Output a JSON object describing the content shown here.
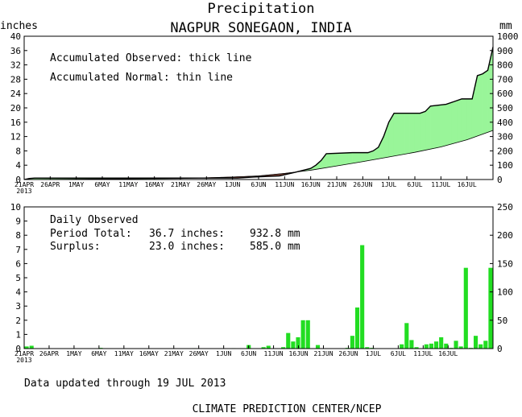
{
  "header": {
    "title": "Precipitation",
    "subtitle": "NAGPUR SONEGAON, INDIA",
    "left_unit": "inches",
    "right_unit": "mm"
  },
  "footer": {
    "updated": "Data updated through 19 JUL 2013",
    "credit": "CLIMATE PREDICTION CENTER/NCEP"
  },
  "colors": {
    "fill": "#99f599",
    "deficit": "#8c4a3c",
    "bar": "#22dd22",
    "line": "#000000"
  },
  "chart_data": [
    {
      "type": "area",
      "legend": [
        "Accumulated Observed: thick line",
        "Accumulated Normal: thin line"
      ],
      "x_tick_labels": [
        "21APR",
        "26APR",
        "1MAY",
        "6MAY",
        "11MAY",
        "16MAY",
        "21MAY",
        "26MAY",
        "1JUN",
        "6JUN",
        "11JUN",
        "16JUN",
        "21JUN",
        "26JUN",
        "1JUL",
        "6JUL",
        "11JUL",
        "16JUL"
      ],
      "x_year_label": "2013",
      "ylim_left": [
        0,
        40
      ],
      "y_ticks_left": [
        0,
        4,
        8,
        12,
        16,
        20,
        24,
        28,
        32,
        36,
        40
      ],
      "ylim_right": [
        0,
        1000
      ],
      "y_ticks_right": [
        0,
        100,
        200,
        300,
        400,
        500,
        600,
        700,
        800,
        900,
        1000
      ],
      "x_days": 90,
      "series": [
        {
          "name": "Accumulated Observed",
          "points": [
            [
              0,
              0
            ],
            [
              1,
              0.3
            ],
            [
              2,
              0.4
            ],
            [
              30,
              0.4
            ],
            [
              41,
              0.4
            ],
            [
              44,
              0.7
            ],
            [
              49,
              1.0
            ],
            [
              52,
              2.0
            ],
            [
              55,
              3.1
            ],
            [
              56,
              4.0
            ],
            [
              57,
              5.3
            ],
            [
              58,
              7.2
            ],
            [
              63,
              7.5
            ],
            [
              66,
              7.5
            ],
            [
              67,
              8.0
            ],
            [
              68,
              9.0
            ],
            [
              69,
              12.0
            ],
            [
              70,
              16.0
            ],
            [
              71,
              18.5
            ],
            [
              76,
              18.5
            ],
            [
              77,
              19.0
            ],
            [
              78,
              20.5
            ],
            [
              81,
              21.0
            ],
            [
              83,
              22.0
            ],
            [
              84,
              22.5
            ],
            [
              86,
              22.5
            ],
            [
              87,
              29.0
            ],
            [
              88,
              29.5
            ],
            [
              89,
              30.5
            ],
            [
              90,
              37.0
            ]
          ]
        },
        {
          "name": "Accumulated Normal",
          "points": [
            [
              0,
              0
            ],
            [
              10,
              0.1
            ],
            [
              20,
              0.2
            ],
            [
              30,
              0.3
            ],
            [
              40,
              0.7
            ],
            [
              45,
              1.0
            ],
            [
              50,
              1.7
            ],
            [
              55,
              2.6
            ],
            [
              60,
              3.8
            ],
            [
              65,
              5.0
            ],
            [
              70,
              6.3
            ],
            [
              75,
              7.6
            ],
            [
              80,
              9.1
            ],
            [
              85,
              11.1
            ],
            [
              90,
              13.7
            ]
          ]
        }
      ]
    },
    {
      "type": "bar",
      "title": "Daily Observed",
      "stats": {
        "period_total_label": "Period Total:",
        "period_total_in": "36.7 inches:",
        "period_total_mm": "932.8 mm",
        "surplus_label": "Surplus:",
        "surplus_in": "23.0 inches:",
        "surplus_mm": "585.0 mm"
      },
      "x_tick_labels": [
        "21APR",
        "26APR",
        "1MAY",
        "6MAY",
        "11MAY",
        "16MAY",
        "21MAY",
        "26MAY",
        "1JUN",
        "6JUN",
        "11JUN",
        "16JUN",
        "21JUN",
        "26JUN",
        "1JUL",
        "6JUL",
        "11JUL",
        "16JUL"
      ],
      "x_year_label": "2013",
      "ylim_left": [
        0,
        10
      ],
      "y_ticks_left": [
        0,
        1,
        2,
        3,
        4,
        5,
        6,
        7,
        8,
        9,
        10
      ],
      "ylim_right": [
        0,
        250
      ],
      "y_ticks_right": [
        0,
        50,
        100,
        150,
        200,
        250
      ],
      "bars": [
        {
          "day": 0,
          "value": 0.15
        },
        {
          "day": 1,
          "value": 0.2
        },
        {
          "day": 2,
          "value": 0.02
        },
        {
          "day": 15,
          "value": 0.05
        },
        {
          "day": 25,
          "value": 0.02
        },
        {
          "day": 32,
          "value": 0.02
        },
        {
          "day": 34,
          "value": 0.03
        },
        {
          "day": 36,
          "value": 0.02
        },
        {
          "day": 42,
          "value": 0.03
        },
        {
          "day": 45,
          "value": 0.25
        },
        {
          "day": 48,
          "value": 0.1
        },
        {
          "day": 49,
          "value": 0.2
        },
        {
          "day": 52,
          "value": 0.1
        },
        {
          "day": 53,
          "value": 1.1
        },
        {
          "day": 54,
          "value": 0.5
        },
        {
          "day": 55,
          "value": 0.8
        },
        {
          "day": 56,
          "value": 2.0
        },
        {
          "day": 57,
          "value": 2.0
        },
        {
          "day": 59,
          "value": 0.25
        },
        {
          "day": 65,
          "value": 0.05
        },
        {
          "day": 66,
          "value": 0.9
        },
        {
          "day": 67,
          "value": 2.9
        },
        {
          "day": 68,
          "value": 7.3
        },
        {
          "day": 69,
          "value": 0.1
        },
        {
          "day": 70,
          "value": 0.05
        },
        {
          "day": 76,
          "value": 0.3
        },
        {
          "day": 77,
          "value": 1.8
        },
        {
          "day": 78,
          "value": 0.6
        },
        {
          "day": 79,
          "value": 0.1
        },
        {
          "day": 81,
          "value": 0.3
        },
        {
          "day": 82,
          "value": 0.35
        },
        {
          "day": 83,
          "value": 0.5
        },
        {
          "day": 84,
          "value": 0.8
        },
        {
          "day": 85,
          "value": 0.35
        },
        {
          "day": 86,
          "value": 0.05
        },
        {
          "day": 87,
          "value": 0.55
        },
        {
          "day": 88,
          "value": 0.15
        },
        {
          "day": 89,
          "value": 5.7
        },
        {
          "day": 90,
          "value": 0.05
        },
        {
          "day": 91,
          "value": 0.9
        },
        {
          "day": 92,
          "value": 0.3
        },
        {
          "day": 93,
          "value": 0.55
        },
        {
          "day": 94,
          "value": 5.7
        }
      ]
    }
  ]
}
